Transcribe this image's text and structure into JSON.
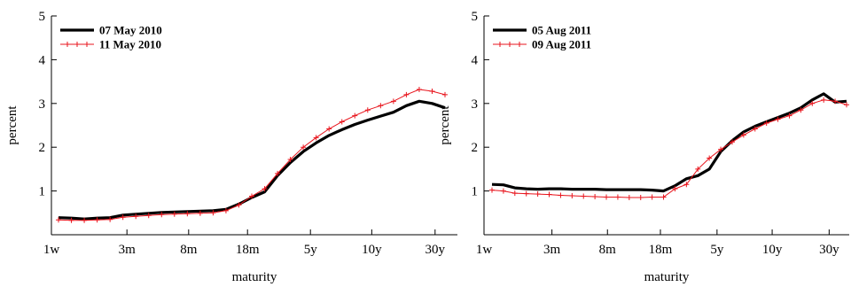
{
  "chart_data": [
    {
      "type": "line",
      "xlabel": "maturity",
      "ylabel": "percent",
      "ylim": [
        0,
        5
      ],
      "yticks": [
        "1",
        "2",
        "3",
        "4",
        "5"
      ],
      "xticks": [
        "1w",
        "3m",
        "8m",
        "18m",
        "5y",
        "10y",
        "30y"
      ],
      "legend_position": "top-left",
      "series": [
        {
          "name": "07 May 2010",
          "color": "#000000",
          "style": "thick",
          "values": [
            0.39,
            0.38,
            0.36,
            0.38,
            0.39,
            0.45,
            0.47,
            0.49,
            0.51,
            0.52,
            0.53,
            0.54,
            0.55,
            0.58,
            0.7,
            0.85,
            0.98,
            1.35,
            1.65,
            1.9,
            2.1,
            2.27,
            2.4,
            2.52,
            2.62,
            2.71,
            2.8,
            2.95,
            3.05,
            3.0,
            2.9
          ]
        },
        {
          "name": "11 May 2010",
          "color": "#e8141c",
          "style": "plus",
          "values": [
            0.34,
            0.33,
            0.33,
            0.34,
            0.35,
            0.4,
            0.42,
            0.44,
            0.46,
            0.47,
            0.48,
            0.49,
            0.5,
            0.55,
            0.68,
            0.88,
            1.05,
            1.4,
            1.72,
            2.0,
            2.22,
            2.42,
            2.58,
            2.72,
            2.85,
            2.95,
            3.05,
            3.2,
            3.32,
            3.28,
            3.2
          ]
        }
      ]
    },
    {
      "type": "line",
      "xlabel": "maturity",
      "ylabel": "percent",
      "ylim": [
        0,
        5
      ],
      "yticks": [
        "1",
        "2",
        "3",
        "4",
        "5"
      ],
      "xticks": [
        "1w",
        "3m",
        "8m",
        "18m",
        "5y",
        "10y",
        "30y"
      ],
      "legend_position": "top-left",
      "series": [
        {
          "name": "05 Aug 2011",
          "color": "#000000",
          "style": "thick",
          "values": [
            1.15,
            1.14,
            1.07,
            1.05,
            1.04,
            1.05,
            1.05,
            1.04,
            1.04,
            1.04,
            1.03,
            1.03,
            1.03,
            1.03,
            1.02,
            1.0,
            1.12,
            1.28,
            1.35,
            1.5,
            1.9,
            2.15,
            2.35,
            2.48,
            2.58,
            2.68,
            2.78,
            2.9,
            3.08,
            3.22,
            3.03,
            3.05
          ]
        },
        {
          "name": "09 Aug 2011",
          "color": "#e8141c",
          "style": "plus",
          "values": [
            1.02,
            1.0,
            0.95,
            0.94,
            0.93,
            0.92,
            0.9,
            0.89,
            0.88,
            0.87,
            0.86,
            0.86,
            0.85,
            0.85,
            0.86,
            0.86,
            1.05,
            1.15,
            1.5,
            1.75,
            1.95,
            2.12,
            2.28,
            2.42,
            2.55,
            2.64,
            2.72,
            2.85,
            3.0,
            3.08,
            3.05,
            2.97
          ]
        }
      ]
    }
  ]
}
